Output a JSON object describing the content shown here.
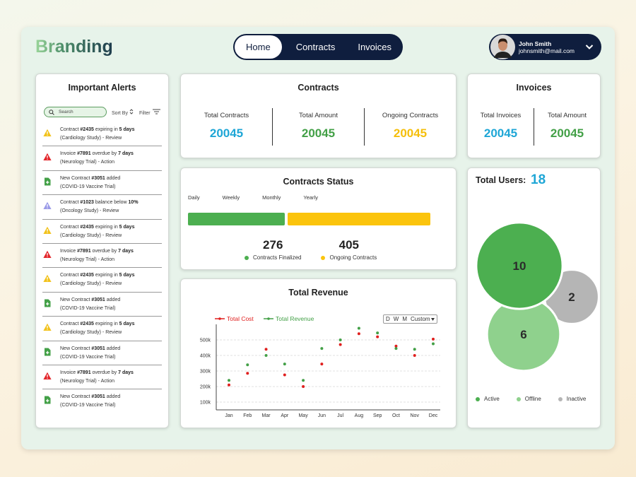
{
  "header": {
    "brand": "Branding",
    "nav": [
      "Home",
      "Contracts",
      "Invoices"
    ],
    "active_nav": 0,
    "user": {
      "name": "John Smith",
      "email": "johnsmith@mail.com"
    }
  },
  "alerts": {
    "title": "Important Alerts",
    "search": "Search",
    "sort": "Sort By",
    "filter": "Filter",
    "items": [
      {
        "kind": "warning",
        "parts": [
          "Contract ",
          "#2435",
          " expiring in ",
          "5 days"
        ],
        "detail": "(Cardiology Study) - Review"
      },
      {
        "kind": "error",
        "parts": [
          "Invoice ",
          "#7891",
          " overdue by ",
          "7 days"
        ],
        "detail": "(Neurology Trial) - Action"
      },
      {
        "kind": "doc",
        "parts": [
          "New Contract ",
          "#3051",
          " added"
        ],
        "detail": "(COVID-19 Vaccine Trial)"
      },
      {
        "kind": "info",
        "parts": [
          "Contract ",
          "#1023",
          " balance below ",
          "10%"
        ],
        "detail": "(Oncology Study) - Review"
      },
      {
        "kind": "warning",
        "parts": [
          "Contract ",
          "#2435",
          " expiring in ",
          "5 days"
        ],
        "detail": "(Cardiology Study) - Review"
      },
      {
        "kind": "error",
        "parts": [
          "Invoice ",
          "#7891",
          " overdue by ",
          "7 days"
        ],
        "detail": "(Neurology Trial) - Action"
      },
      {
        "kind": "warning",
        "parts": [
          "Contract ",
          "#2435",
          " expiring in ",
          "5 days"
        ],
        "detail": "(Cardiology Study) - Review"
      },
      {
        "kind": "doc",
        "parts": [
          "New Contract ",
          "#3051",
          " added"
        ],
        "detail": "(COVID-19 Vaccine Trial)"
      },
      {
        "kind": "warning",
        "parts": [
          "Contract ",
          "#2435",
          " expiring in ",
          "5 days"
        ],
        "detail": "(Cardiology Study) - Review"
      },
      {
        "kind": "doc",
        "parts": [
          "New Contract ",
          "#3051",
          " added"
        ],
        "detail": "(COVID-19 Vaccine Trial)"
      },
      {
        "kind": "error",
        "parts": [
          "Invoice ",
          "#7891",
          " overdue by ",
          "7 days"
        ],
        "detail": "(Neurology Trial) - Action"
      },
      {
        "kind": "doc",
        "parts": [
          "New Contract ",
          "#3051",
          " added"
        ],
        "detail": "(COVID-19 Vaccine Trial)"
      }
    ]
  },
  "contracts": {
    "title": "Contracts",
    "stats": [
      {
        "label": "Total Contracts",
        "value": 20045,
        "color": "#1ea6d6"
      },
      {
        "label": "Total Amount",
        "value": 20045,
        "color": "#43a047"
      },
      {
        "label": "Ongoing Contracts",
        "value": 20045,
        "color": "#f5bf0c"
      }
    ]
  },
  "invoices": {
    "title": "Invoices",
    "stats": [
      {
        "label": "Total Invoices",
        "value": 20045,
        "color": "#1ea6d6"
      },
      {
        "label": "Total Amount",
        "value": 20045,
        "color": "#43a047"
      }
    ]
  },
  "contracts_status": {
    "title": "Contracts Status",
    "periods": [
      "Daily",
      "Weekly",
      "Monthly",
      "Yearly"
    ],
    "segments": [
      {
        "name": "Contracts Finalized",
        "value": 276,
        "color": "#4caf50"
      },
      {
        "name": "Ongoing Contracts",
        "value": 405,
        "color": "#fbc40d"
      }
    ]
  },
  "users": {
    "title": "Total Users:",
    "total": 18,
    "segments": [
      {
        "name": "Active",
        "value": 10,
        "color": "#4caf50"
      },
      {
        "name": "Offline",
        "value": 6,
        "color": "#8fd18d"
      },
      {
        "name": "Inactive",
        "value": 2,
        "color": "#b5b5b5"
      }
    ]
  },
  "chart_data": {
    "type": "line",
    "title": "Total Revenue",
    "range_buttons": [
      "D",
      "W",
      "M",
      "Custom"
    ],
    "categories": [
      "Jan",
      "Feb",
      "Mar",
      "Apr",
      "May",
      "Jun",
      "Jul",
      "Aug",
      "Sep",
      "Oct",
      "Nov",
      "Dec"
    ],
    "series": [
      {
        "name": "Total Cost",
        "color": "#e0201f",
        "values": [
          210000,
          285000,
          440000,
          275000,
          200000,
          345000,
          470000,
          540000,
          520000,
          460000,
          400000,
          505000
        ]
      },
      {
        "name": "Total Revenue",
        "color": "#43a047",
        "values": [
          240000,
          340000,
          400000,
          345000,
          240000,
          445000,
          500000,
          575000,
          545000,
          445000,
          440000,
          475000
        ]
      }
    ],
    "ylim": [
      50000,
      600000
    ],
    "yticks": [
      {
        "value": 100000,
        "label": "100k"
      },
      {
        "value": 200000,
        "label": "200k"
      },
      {
        "value": 300000,
        "label": "300k"
      },
      {
        "value": 400000,
        "label": "400k"
      },
      {
        "value": 500000,
        "label": "500k"
      }
    ],
    "grid": true
  }
}
